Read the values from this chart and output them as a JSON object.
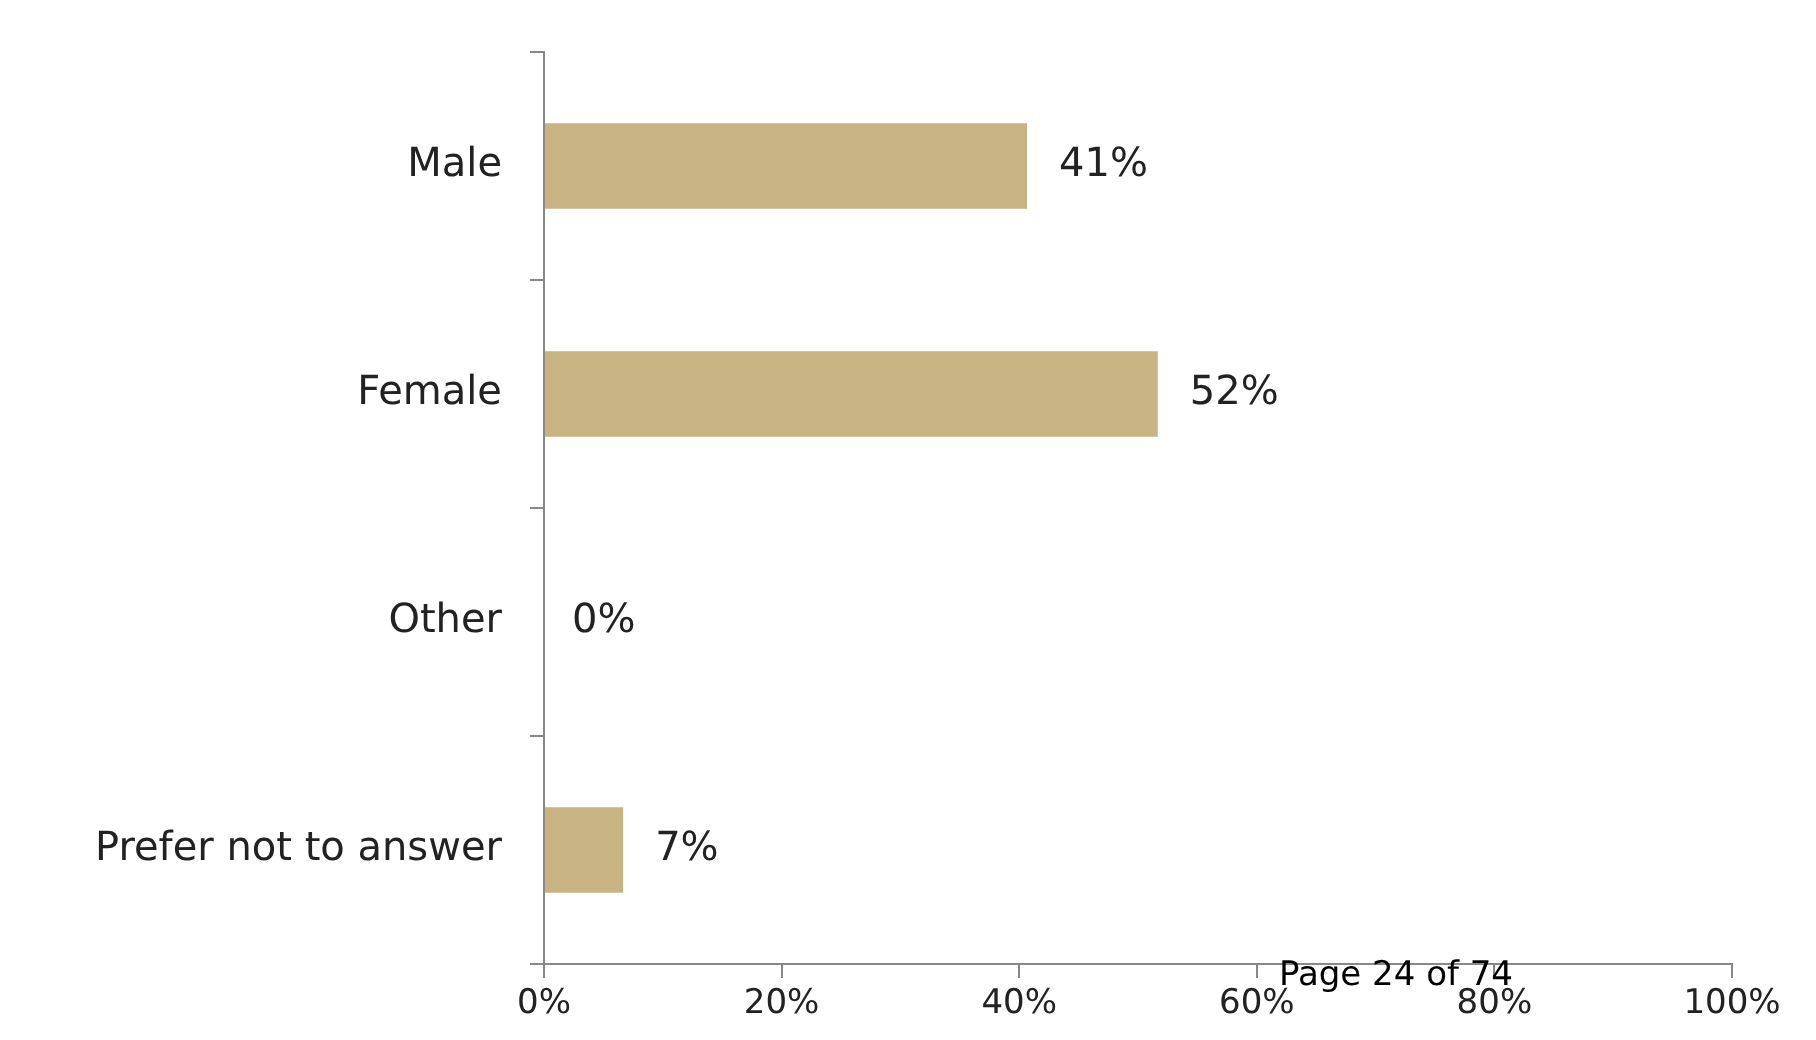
{
  "chart_data": {
    "type": "bar",
    "orientation": "horizontal",
    "categories": [
      "Male",
      "Female",
      "Other",
      "Prefer not to answer"
    ],
    "values": [
      41,
      52,
      0,
      7
    ],
    "color": "#c8b482",
    "value_labels": [
      "41%",
      "52%",
      "0%",
      "7%"
    ],
    "xlim": [
      0,
      100
    ],
    "xticks": [
      {
        "value": 0,
        "label": "0%"
      },
      {
        "value": 20,
        "label": "20%"
      },
      {
        "value": 40,
        "label": "40%"
      },
      {
        "value": 60,
        "label": "60%"
      },
      {
        "value": 80,
        "label": "80%"
      },
      {
        "value": 100,
        "label": "100%"
      }
    ],
    "annotations": [
      "Page 24 of 74"
    ]
  }
}
